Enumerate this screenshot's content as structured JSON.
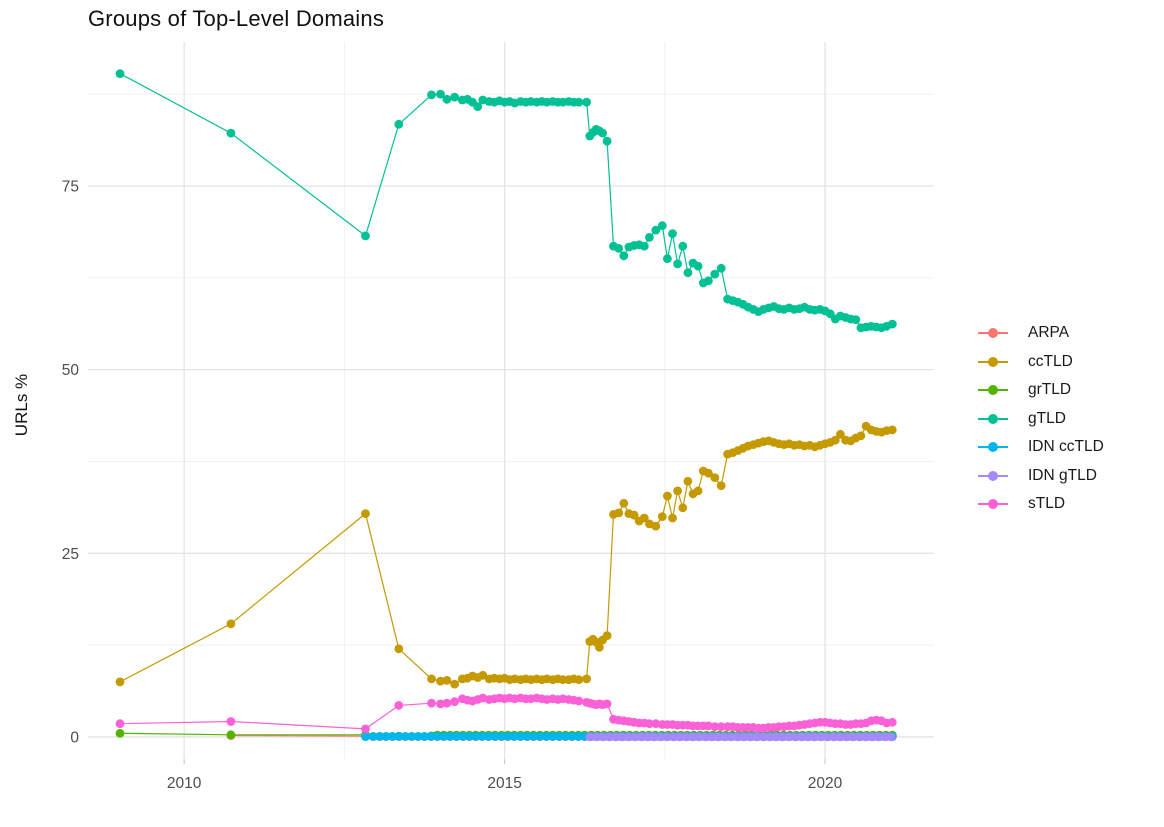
{
  "chart_data": {
    "type": "line",
    "title": "Groups of Top-Level Domains",
    "xlabel": "",
    "ylabel": "URLs %",
    "grid": true,
    "legend_position": "right",
    "xlim": [
      2008.5,
      2021.7
    ],
    "ylim": [
      -3,
      94.6
    ],
    "x_ticks": [
      2010,
      2015,
      2020
    ],
    "x_minor": [
      2012.5,
      2017.5
    ],
    "y_ticks": [
      0,
      25,
      50,
      75
    ],
    "y_minor": [
      12.5,
      37.5,
      62.5,
      87.5
    ],
    "colors": {
      "major_grid": "#e4e4e4",
      "minor_grid": "#efefef",
      "tick_label": "#4d4d4d",
      "axis_tick": "#c2c2c2"
    },
    "series": [
      {
        "name": "ARPA",
        "color": "#F8766D",
        "points": [
          [
            2010.73,
            0.18
          ],
          [
            2012.83,
            0.1
          ]
        ],
        "flat": {
          "from": 2012.95,
          "to": 2021.05,
          "step": 0.1,
          "value": 0.05
        }
      },
      {
        "name": "ccTLD",
        "color": "#C49A00",
        "points": [
          [
            2009.0,
            7.5
          ],
          [
            2010.73,
            15.4
          ],
          [
            2012.83,
            30.4
          ],
          [
            2013.35,
            12.0
          ],
          [
            2013.86,
            7.9
          ],
          [
            2014.0,
            7.6
          ],
          [
            2014.1,
            7.7
          ],
          [
            2014.22,
            7.2
          ],
          [
            2014.34,
            7.9
          ],
          [
            2014.42,
            8.0
          ],
          [
            2014.5,
            8.3
          ],
          [
            2014.58,
            8.1
          ],
          [
            2014.66,
            8.4
          ],
          [
            2014.76,
            7.9
          ],
          [
            2014.84,
            8.0
          ],
          [
            2014.92,
            7.9
          ],
          [
            2015.0,
            8.0
          ],
          [
            2015.08,
            7.8
          ],
          [
            2015.16,
            7.9
          ],
          [
            2015.25,
            7.8
          ],
          [
            2015.33,
            7.9
          ],
          [
            2015.41,
            7.8
          ],
          [
            2015.5,
            7.9
          ],
          [
            2015.58,
            7.8
          ],
          [
            2015.66,
            7.9
          ],
          [
            2015.75,
            7.8
          ],
          [
            2015.83,
            7.9
          ],
          [
            2015.91,
            7.8
          ],
          [
            2016.0,
            7.8
          ],
          [
            2016.08,
            7.9
          ],
          [
            2016.16,
            7.8
          ],
          [
            2016.28,
            7.9
          ],
          [
            2016.33,
            13.0
          ],
          [
            2016.38,
            13.3
          ],
          [
            2016.43,
            12.9
          ],
          [
            2016.48,
            12.2
          ],
          [
            2016.53,
            13.2
          ],
          [
            2016.6,
            13.8
          ],
          [
            2016.7,
            30.3
          ],
          [
            2016.78,
            30.5
          ],
          [
            2016.86,
            31.8
          ],
          [
            2016.94,
            30.4
          ],
          [
            2017.02,
            30.2
          ],
          [
            2017.1,
            29.4
          ],
          [
            2017.18,
            29.8
          ],
          [
            2017.26,
            29.0
          ],
          [
            2017.36,
            28.7
          ],
          [
            2017.46,
            30.0
          ],
          [
            2017.54,
            32.8
          ],
          [
            2017.62,
            29.8
          ],
          [
            2017.7,
            33.5
          ],
          [
            2017.78,
            31.2
          ],
          [
            2017.86,
            34.8
          ],
          [
            2017.94,
            33.1
          ],
          [
            2018.02,
            33.5
          ],
          [
            2018.1,
            36.2
          ],
          [
            2018.18,
            35.9
          ],
          [
            2018.28,
            35.3
          ],
          [
            2018.38,
            34.2
          ],
          [
            2018.48,
            38.5
          ],
          [
            2018.56,
            38.7
          ],
          [
            2018.64,
            39.0
          ],
          [
            2018.72,
            39.3
          ],
          [
            2018.8,
            39.6
          ],
          [
            2018.88,
            39.8
          ],
          [
            2018.96,
            40.0
          ],
          [
            2019.04,
            40.2
          ],
          [
            2019.12,
            40.3
          ],
          [
            2019.2,
            40.1
          ],
          [
            2019.28,
            39.9
          ],
          [
            2019.36,
            39.8
          ],
          [
            2019.44,
            39.9
          ],
          [
            2019.52,
            39.7
          ],
          [
            2019.6,
            39.8
          ],
          [
            2019.68,
            39.6
          ],
          [
            2019.76,
            39.7
          ],
          [
            2019.84,
            39.5
          ],
          [
            2019.92,
            39.7
          ],
          [
            2020.0,
            39.9
          ],
          [
            2020.08,
            40.1
          ],
          [
            2020.16,
            40.4
          ],
          [
            2020.24,
            41.2
          ],
          [
            2020.32,
            40.4
          ],
          [
            2020.4,
            40.3
          ],
          [
            2020.48,
            40.7
          ],
          [
            2020.56,
            41.0
          ],
          [
            2020.64,
            42.3
          ],
          [
            2020.72,
            41.8
          ],
          [
            2020.8,
            41.6
          ],
          [
            2020.88,
            41.5
          ],
          [
            2020.96,
            41.7
          ],
          [
            2021.05,
            41.8
          ]
        ]
      },
      {
        "name": "grTLD",
        "color": "#53B400",
        "points": [
          [
            2009.0,
            0.5
          ],
          [
            2010.73,
            0.3
          ],
          [
            2012.83,
            0.3
          ],
          [
            2013.35,
            0.12
          ],
          [
            2013.86,
            0.15
          ]
        ],
        "flat": {
          "from": 2013.95,
          "to": 2021.05,
          "step": 0.1,
          "value": 0.25
        }
      },
      {
        "name": "gTLD",
        "color": "#00C094",
        "points": [
          [
            2009.0,
            90.3
          ],
          [
            2010.73,
            82.2
          ],
          [
            2012.83,
            68.2
          ],
          [
            2013.35,
            83.4
          ],
          [
            2013.86,
            87.4
          ],
          [
            2014.0,
            87.5
          ],
          [
            2014.1,
            86.8
          ],
          [
            2014.22,
            87.1
          ],
          [
            2014.34,
            86.7
          ],
          [
            2014.42,
            86.8
          ],
          [
            2014.5,
            86.4
          ],
          [
            2014.58,
            85.8
          ],
          [
            2014.66,
            86.7
          ],
          [
            2014.76,
            86.5
          ],
          [
            2014.84,
            86.4
          ],
          [
            2014.92,
            86.6
          ],
          [
            2015.0,
            86.4
          ],
          [
            2015.08,
            86.5
          ],
          [
            2015.16,
            86.3
          ],
          [
            2015.25,
            86.5
          ],
          [
            2015.33,
            86.4
          ],
          [
            2015.41,
            86.5
          ],
          [
            2015.5,
            86.4
          ],
          [
            2015.58,
            86.5
          ],
          [
            2015.66,
            86.4
          ],
          [
            2015.75,
            86.5
          ],
          [
            2015.83,
            86.4
          ],
          [
            2015.91,
            86.4
          ],
          [
            2016.0,
            86.5
          ],
          [
            2016.08,
            86.4
          ],
          [
            2016.16,
            86.4
          ],
          [
            2016.28,
            86.4
          ],
          [
            2016.33,
            81.8
          ],
          [
            2016.38,
            82.3
          ],
          [
            2016.43,
            82.7
          ],
          [
            2016.48,
            82.5
          ],
          [
            2016.53,
            82.2
          ],
          [
            2016.6,
            81.1
          ],
          [
            2016.7,
            66.8
          ],
          [
            2016.78,
            66.5
          ],
          [
            2016.86,
            65.5
          ],
          [
            2016.94,
            66.7
          ],
          [
            2017.02,
            66.9
          ],
          [
            2017.1,
            67.0
          ],
          [
            2017.18,
            66.8
          ],
          [
            2017.26,
            68.0
          ],
          [
            2017.36,
            69.0
          ],
          [
            2017.46,
            69.6
          ],
          [
            2017.54,
            65.1
          ],
          [
            2017.62,
            68.5
          ],
          [
            2017.7,
            64.4
          ],
          [
            2017.78,
            66.8
          ],
          [
            2017.86,
            63.2
          ],
          [
            2017.94,
            64.5
          ],
          [
            2018.02,
            64.1
          ],
          [
            2018.1,
            61.8
          ],
          [
            2018.18,
            62.1
          ],
          [
            2018.28,
            63.0
          ],
          [
            2018.38,
            63.8
          ],
          [
            2018.48,
            59.6
          ],
          [
            2018.56,
            59.4
          ],
          [
            2018.64,
            59.2
          ],
          [
            2018.72,
            58.9
          ],
          [
            2018.8,
            58.5
          ],
          [
            2018.88,
            58.2
          ],
          [
            2018.96,
            57.9
          ],
          [
            2019.04,
            58.2
          ],
          [
            2019.12,
            58.4
          ],
          [
            2019.2,
            58.6
          ],
          [
            2019.28,
            58.3
          ],
          [
            2019.36,
            58.2
          ],
          [
            2019.44,
            58.4
          ],
          [
            2019.52,
            58.2
          ],
          [
            2019.6,
            58.3
          ],
          [
            2019.68,
            58.5
          ],
          [
            2019.76,
            58.2
          ],
          [
            2019.84,
            58.1
          ],
          [
            2019.92,
            58.2
          ],
          [
            2020.0,
            58.0
          ],
          [
            2020.08,
            57.6
          ],
          [
            2020.16,
            56.9
          ],
          [
            2020.24,
            57.3
          ],
          [
            2020.32,
            57.1
          ],
          [
            2020.4,
            56.9
          ],
          [
            2020.48,
            56.8
          ],
          [
            2020.56,
            55.7
          ],
          [
            2020.64,
            55.8
          ],
          [
            2020.72,
            55.9
          ],
          [
            2020.8,
            55.8
          ],
          [
            2020.88,
            55.7
          ],
          [
            2020.96,
            55.9
          ],
          [
            2021.05,
            56.2
          ]
        ]
      },
      {
        "name": "IDN ccTLD",
        "color": "#00B6EB",
        "points": [
          [
            2012.83,
            0.05
          ]
        ],
        "flat": {
          "from": 2012.95,
          "to": 2021.05,
          "step": 0.1,
          "value": 0.08
        }
      },
      {
        "name": "IDN gTLD",
        "color": "#A58AFF",
        "points": [],
        "flat": {
          "from": 2016.33,
          "to": 2021.05,
          "step": 0.1,
          "value": 0.02
        }
      },
      {
        "name": "sTLD",
        "color": "#FB61D7",
        "points": [
          [
            2009.0,
            1.8
          ],
          [
            2010.73,
            2.1
          ],
          [
            2012.83,
            1.1
          ],
          [
            2013.35,
            4.3
          ],
          [
            2013.86,
            4.6
          ],
          [
            2014.0,
            4.5
          ],
          [
            2014.1,
            4.6
          ],
          [
            2014.22,
            4.8
          ],
          [
            2014.34,
            5.2
          ],
          [
            2014.42,
            5.0
          ],
          [
            2014.5,
            4.9
          ],
          [
            2014.58,
            5.1
          ],
          [
            2014.66,
            5.3
          ],
          [
            2014.76,
            5.1
          ],
          [
            2014.84,
            5.2
          ],
          [
            2014.92,
            5.3
          ],
          [
            2015.0,
            5.2
          ],
          [
            2015.08,
            5.3
          ],
          [
            2015.16,
            5.2
          ],
          [
            2015.25,
            5.3
          ],
          [
            2015.33,
            5.2
          ],
          [
            2015.41,
            5.2
          ],
          [
            2015.5,
            5.3
          ],
          [
            2015.58,
            5.2
          ],
          [
            2015.66,
            5.1
          ],
          [
            2015.75,
            5.2
          ],
          [
            2015.83,
            5.1
          ],
          [
            2015.91,
            5.2
          ],
          [
            2016.0,
            5.1
          ],
          [
            2016.08,
            5.0
          ],
          [
            2016.16,
            4.9
          ],
          [
            2016.28,
            4.7
          ],
          [
            2016.33,
            4.6
          ],
          [
            2016.38,
            4.5
          ],
          [
            2016.43,
            4.4
          ],
          [
            2016.48,
            4.5
          ],
          [
            2016.53,
            4.4
          ],
          [
            2016.6,
            4.5
          ],
          [
            2016.7,
            2.4
          ],
          [
            2016.78,
            2.3
          ],
          [
            2016.86,
            2.2
          ],
          [
            2016.94,
            2.1
          ],
          [
            2017.02,
            2.0
          ],
          [
            2017.1,
            1.9
          ],
          [
            2017.18,
            1.9
          ],
          [
            2017.26,
            1.8
          ],
          [
            2017.36,
            1.8
          ],
          [
            2017.46,
            1.7
          ],
          [
            2017.54,
            1.7
          ],
          [
            2017.62,
            1.7
          ],
          [
            2017.7,
            1.6
          ],
          [
            2017.78,
            1.6
          ],
          [
            2017.86,
            1.6
          ],
          [
            2017.94,
            1.5
          ],
          [
            2018.02,
            1.5
          ],
          [
            2018.1,
            1.5
          ],
          [
            2018.18,
            1.5
          ],
          [
            2018.28,
            1.4
          ],
          [
            2018.38,
            1.4
          ],
          [
            2018.48,
            1.4
          ],
          [
            2018.56,
            1.4
          ],
          [
            2018.64,
            1.3
          ],
          [
            2018.72,
            1.3
          ],
          [
            2018.8,
            1.3
          ],
          [
            2018.88,
            1.3
          ],
          [
            2018.96,
            1.2
          ],
          [
            2019.04,
            1.2
          ],
          [
            2019.12,
            1.3
          ],
          [
            2019.2,
            1.3
          ],
          [
            2019.28,
            1.4
          ],
          [
            2019.36,
            1.4
          ],
          [
            2019.44,
            1.5
          ],
          [
            2019.52,
            1.5
          ],
          [
            2019.6,
            1.6
          ],
          [
            2019.68,
            1.7
          ],
          [
            2019.76,
            1.8
          ],
          [
            2019.84,
            1.9
          ],
          [
            2019.92,
            2.0
          ],
          [
            2020.0,
            2.0
          ],
          [
            2020.08,
            1.9
          ],
          [
            2020.16,
            1.8
          ],
          [
            2020.24,
            1.8
          ],
          [
            2020.32,
            1.7
          ],
          [
            2020.4,
            1.7
          ],
          [
            2020.48,
            1.8
          ],
          [
            2020.56,
            1.8
          ],
          [
            2020.64,
            1.9
          ],
          [
            2020.72,
            2.2
          ],
          [
            2020.8,
            2.3
          ],
          [
            2020.88,
            2.2
          ],
          [
            2020.96,
            1.9
          ],
          [
            2021.05,
            2.0
          ]
        ]
      }
    ]
  }
}
